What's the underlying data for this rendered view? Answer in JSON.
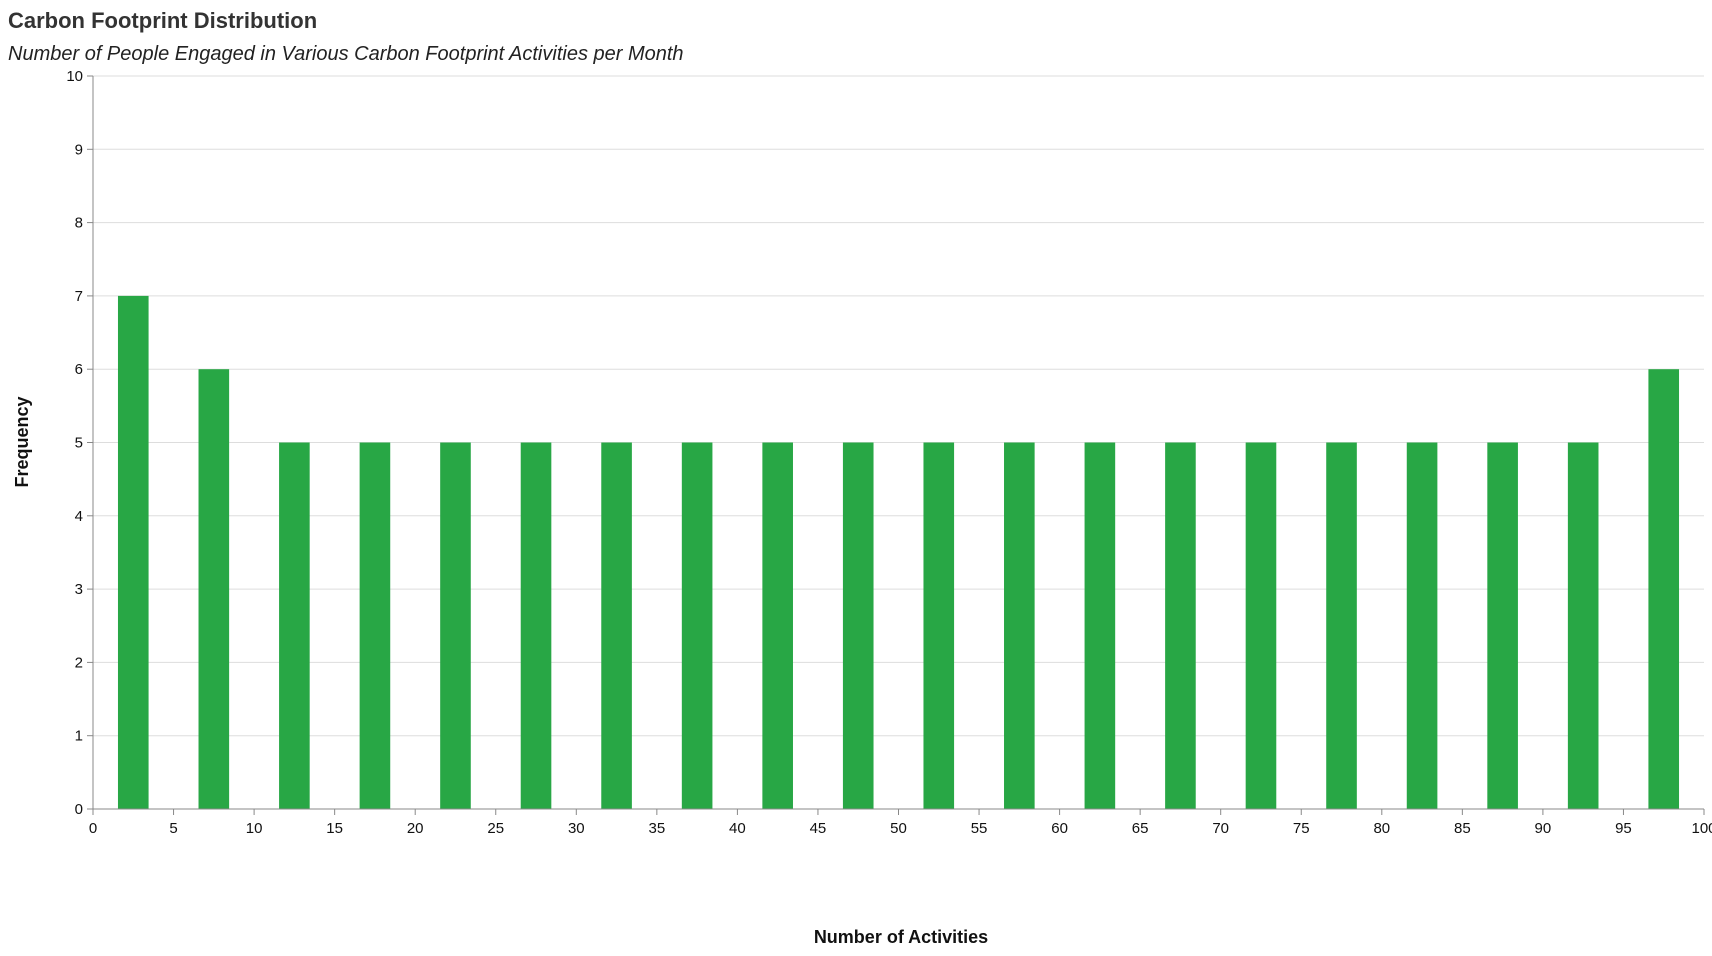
{
  "chart_data": {
    "type": "bar",
    "title": "Carbon Footprint Distribution",
    "subtitle": "Number of People Engaged in Various Carbon Footprint Activities per Month",
    "xlabel": "Number of Activities",
    "ylabel": "Frequency",
    "xlim": [
      0,
      100
    ],
    "ylim": [
      0,
      10
    ],
    "x_ticks": [
      0,
      5,
      10,
      15,
      20,
      25,
      30,
      35,
      40,
      45,
      50,
      55,
      60,
      65,
      70,
      75,
      80,
      85,
      90,
      95,
      100
    ],
    "y_ticks": [
      0,
      1,
      2,
      3,
      4,
      5,
      6,
      7,
      8,
      9,
      10
    ],
    "bins": [
      {
        "start": 0,
        "end": 5,
        "value": 7
      },
      {
        "start": 5,
        "end": 10,
        "value": 6
      },
      {
        "start": 10,
        "end": 15,
        "value": 5
      },
      {
        "start": 15,
        "end": 20,
        "value": 5
      },
      {
        "start": 20,
        "end": 25,
        "value": 5
      },
      {
        "start": 25,
        "end": 30,
        "value": 5
      },
      {
        "start": 30,
        "end": 35,
        "value": 5
      },
      {
        "start": 35,
        "end": 40,
        "value": 5
      },
      {
        "start": 40,
        "end": 45,
        "value": 5
      },
      {
        "start": 45,
        "end": 50,
        "value": 5
      },
      {
        "start": 50,
        "end": 55,
        "value": 5
      },
      {
        "start": 55,
        "end": 60,
        "value": 5
      },
      {
        "start": 60,
        "end": 65,
        "value": 5
      },
      {
        "start": 65,
        "end": 70,
        "value": 5
      },
      {
        "start": 70,
        "end": 75,
        "value": 5
      },
      {
        "start": 75,
        "end": 80,
        "value": 5
      },
      {
        "start": 80,
        "end": 85,
        "value": 5
      },
      {
        "start": 85,
        "end": 90,
        "value": 5
      },
      {
        "start": 90,
        "end": 95,
        "value": 5
      },
      {
        "start": 95,
        "end": 100,
        "value": 6
      }
    ],
    "bar_color": "#28a745",
    "grid": true,
    "legend": "none"
  }
}
